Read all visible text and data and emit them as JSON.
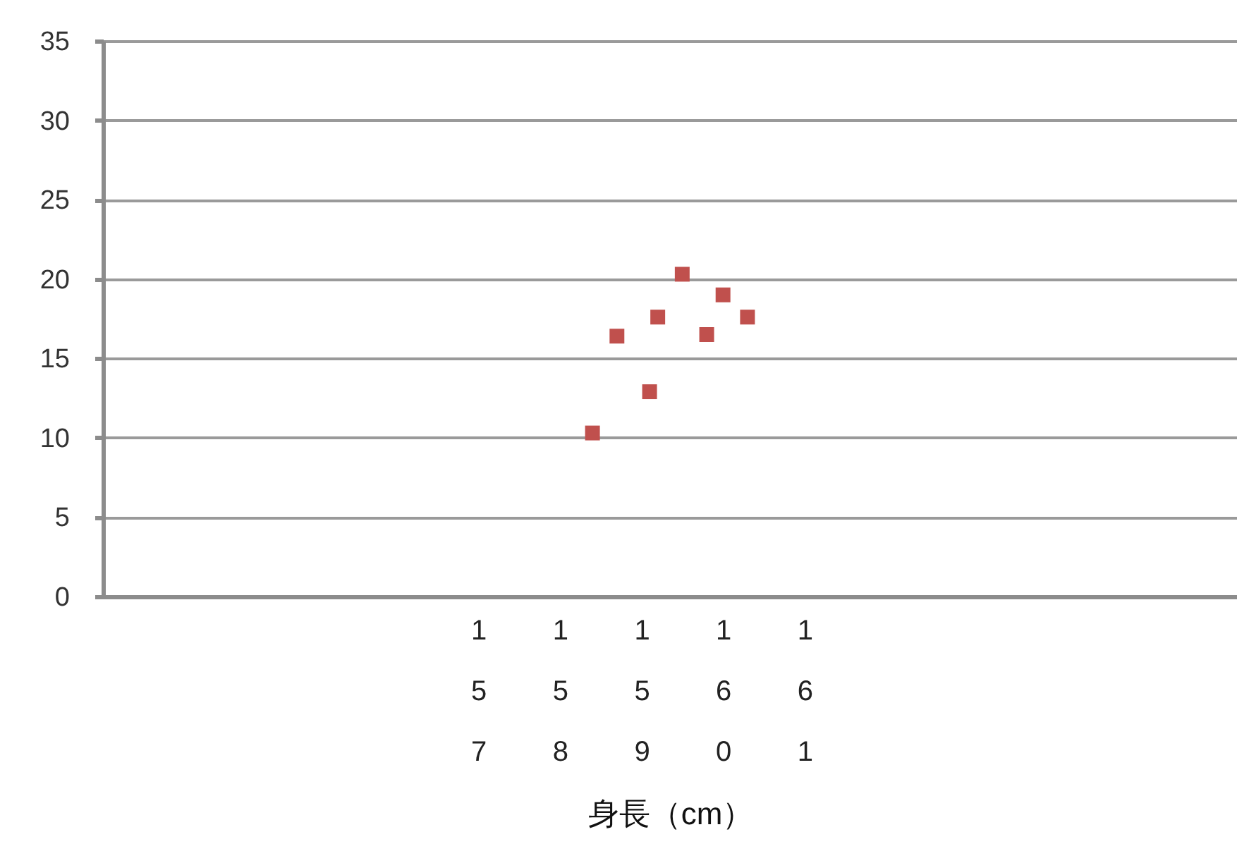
{
  "chart_data": {
    "type": "scatter",
    "xlabel": "身長（cm）",
    "x": [
      158.4,
      158.7,
      159.1,
      159.2,
      159.5,
      159.8,
      160.0,
      160.3
    ],
    "series": [
      {
        "color": "#c0504d",
        "values": [
          10.3,
          16.4,
          12.9,
          17.6,
          20.3,
          16.5,
          19.0,
          17.6
        ]
      }
    ],
    "xlim": [
      152.4,
      166.3
    ],
    "xticks": [
      157,
      158,
      159,
      160,
      161
    ],
    "ylim": [
      0,
      35
    ],
    "yticks": [
      0,
      5,
      10,
      15,
      20,
      25,
      30,
      35
    ],
    "grid": "y",
    "marker": "square"
  }
}
